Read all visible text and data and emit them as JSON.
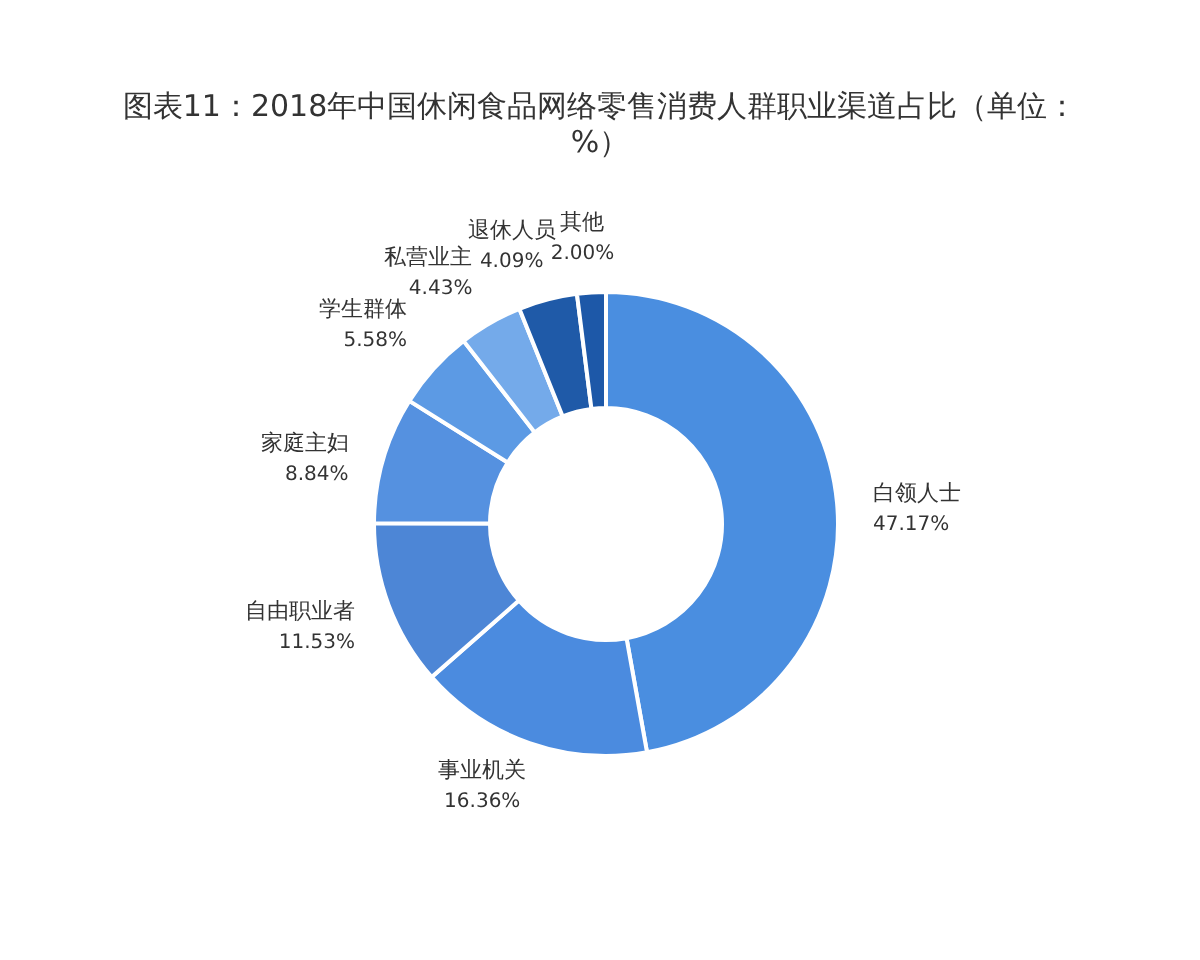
{
  "chart_data": {
    "type": "donut",
    "title": "图表11：2018年中国休闲食品网络零售消费人群职业渠道占比（单位：%）",
    "categories": [
      "白领人士",
      "事业机关",
      "自由职业者",
      "家庭主妇",
      "学生群体",
      "私营业主",
      "退休人员",
      "其他"
    ],
    "values": [
      47.17,
      16.36,
      11.53,
      8.84,
      5.58,
      4.43,
      4.09,
      2.0
    ],
    "value_labels": [
      "47.17%",
      "16.36%",
      "11.53%",
      "8.84%",
      "5.58%",
      "4.43%",
      "4.09%",
      "2.00%"
    ],
    "colors": [
      "#4a8ee0",
      "#4b8bdf",
      "#4d86d6",
      "#5591e0",
      "#5c9ae4",
      "#74aaea",
      "#1f5aa8",
      "#1d58a8"
    ]
  }
}
